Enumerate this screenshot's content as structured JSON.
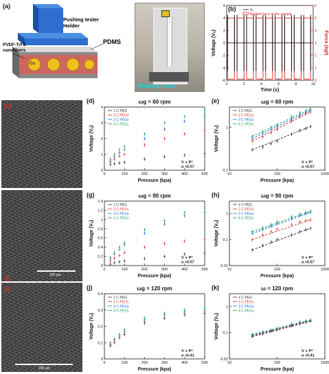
{
  "panels": {
    "a": {
      "label": "(a)",
      "holder_label": "Pushing tester\nHolder",
      "pdms_label": "PDMS",
      "fiber_label": "PVDF-TrFE\nnanofibers",
      "cu_label": "Cu",
      "photo_label": "Pushing tester"
    },
    "f": {
      "label": "(f)",
      "scale": "200 μm"
    },
    "i": {
      "label": "(i)",
      "scale": "200 μm"
    }
  },
  "chart_data": [
    {
      "id": "b",
      "panel_label": "(b)",
      "type": "line",
      "xlabel": "Time (s)",
      "ylabel": "Voltage (Vₒ)",
      "y2label": "Force (kgf)",
      "xlim": [
        0,
        10
      ],
      "ylim": [
        -6,
        6
      ],
      "y2lim": [
        0,
        6
      ],
      "xticks": [
        0,
        2,
        4,
        6,
        8,
        10
      ],
      "yticks": [
        -6,
        -4,
        -2,
        0,
        2,
        4,
        6
      ],
      "y2ticks": [
        0,
        1,
        2,
        3,
        4,
        5,
        6
      ],
      "series": [
        {
          "name": "Vₒ",
          "color": "#000000"
        },
        {
          "name": "Applied force at the sample",
          "color": "#e02020"
        }
      ],
      "force_high": 5,
      "force_low": 0.1,
      "press_intervals": [
        [
          0.1,
          0.9
        ],
        [
          1.2,
          2.0
        ],
        [
          2.3,
          3.1
        ],
        [
          3.4,
          4.2
        ],
        [
          4.5,
          5.3
        ],
        [
          5.6,
          6.4
        ],
        [
          6.7,
          7.5
        ],
        [
          7.8,
          8.6
        ],
        [
          8.9,
          9.7
        ]
      ],
      "spike_amplitude": 4.5
    },
    {
      "id": "d",
      "panel_label": "(d)",
      "type": "scatter",
      "title": "ωg = 60 rpm",
      "xlabel": "Pressure (kpa)",
      "ylabel": "Voltage (Vₒ)",
      "xlim": [
        0,
        500
      ],
      "ylim": [
        0,
        4
      ],
      "xticks": [
        0,
        100,
        200,
        300,
        400,
        500
      ],
      "yticks": [
        0,
        1,
        2,
        3,
        4
      ],
      "annotation": "V ∝ Pᵅ\nα ≈0.57",
      "legend": "top-left",
      "x": [
        30,
        50,
        75,
        100,
        200,
        300,
        400,
        500
      ],
      "series": [
        {
          "name": "1 C-PEG",
          "color": "#333333",
          "values": [
            0.35,
            0.4,
            0.45,
            0.5,
            0.7,
            0.85,
            0.95,
            1.05
          ]
        },
        {
          "name": "2 C-PEGs",
          "color": "#e03030",
          "values": [
            0.5,
            0.7,
            0.9,
            1.0,
            1.6,
            2.0,
            2.3,
            2.5
          ]
        },
        {
          "name": "3 C-PEGs",
          "color": "#2070e0",
          "values": [
            0.6,
            0.85,
            1.1,
            1.3,
            2.0,
            2.6,
            3.1,
            3.4
          ]
        },
        {
          "name": "4 C-PEGs",
          "color": "#20a060",
          "values": [
            0.7,
            1.0,
            1.3,
            1.5,
            2.3,
            3.0,
            3.4,
            3.8
          ]
        }
      ]
    },
    {
      "id": "e",
      "panel_label": "(e)",
      "type": "scatter",
      "title": "ωg = 60 rpm",
      "xlabel": "Pressure (kpa)",
      "ylabel": "Voltage (Vₒ)",
      "xscale": "log",
      "yscale": "log",
      "xlim": [
        10,
        1000
      ],
      "ylim": [
        0.1,
        3
      ],
      "xticks": [
        10,
        100,
        1000
      ],
      "yticks": [
        0.1,
        1
      ],
      "annotation": "V ∝ Pᵅ\nα ≈0.57",
      "legend": "top-left",
      "x": [
        30,
        50,
        75,
        100,
        200,
        300,
        400,
        500
      ],
      "series": [
        {
          "name": "1 C-PEG",
          "color": "#333333",
          "values": [
            0.3,
            0.35,
            0.42,
            0.48,
            0.7,
            0.85,
            0.95,
            1.05
          ]
        },
        {
          "name": "2 C-PEGs",
          "color": "#e03030",
          "values": [
            0.48,
            0.6,
            0.75,
            0.9,
            1.4,
            1.8,
            2.1,
            2.3
          ]
        },
        {
          "name": "3 C-PEGs",
          "color": "#2070e0",
          "values": [
            0.55,
            0.72,
            0.9,
            1.05,
            1.6,
            2.0,
            2.3,
            2.5
          ]
        },
        {
          "name": "4 C-PEGs",
          "color": "#20a060",
          "values": [
            0.62,
            0.8,
            1.0,
            1.15,
            1.8,
            2.2,
            2.5,
            2.7
          ]
        }
      ]
    },
    {
      "id": "g",
      "panel_label": "(g)",
      "type": "scatter",
      "title": "ωg = 90 rpm",
      "xlabel": "Pressure (kpa)",
      "ylabel": "Voltage (Vₒ)",
      "xlim": [
        0,
        500
      ],
      "ylim": [
        0,
        1.4
      ],
      "xticks": [
        0,
        100,
        200,
        300,
        400,
        500
      ],
      "yticks": [
        0,
        0.2,
        0.4,
        0.6,
        0.8,
        1.0,
        1.2,
        1.4
      ],
      "annotation": "V ∝ Pᵅ\nα ≈0.57",
      "legend": "top-left",
      "x": [
        30,
        50,
        75,
        100,
        200,
        300,
        400,
        500
      ],
      "series": [
        {
          "name": "1 C-PEG",
          "color": "#333333",
          "values": [
            0.03,
            0.06,
            0.08,
            0.1,
            0.15,
            0.2,
            0.25,
            0.27
          ]
        },
        {
          "name": "2 C-PEGs",
          "color": "#e03030",
          "values": [
            0.1,
            0.16,
            0.22,
            0.28,
            0.4,
            0.48,
            0.53,
            0.56
          ]
        },
        {
          "name": "3 C-PEGs",
          "color": "#2070e0",
          "values": [
            0.15,
            0.25,
            0.35,
            0.45,
            0.7,
            0.9,
            1.08,
            1.15
          ]
        },
        {
          "name": "4 C-PEGs",
          "color": "#20a060",
          "values": [
            0.18,
            0.28,
            0.4,
            0.5,
            0.78,
            0.97,
            1.15,
            1.25
          ]
        }
      ]
    },
    {
      "id": "h",
      "panel_label": "(h)",
      "type": "scatter",
      "title": "ωg = 90 rpm",
      "xlabel": "Pressure (kpa)",
      "ylabel": "Voltage (Vₒ)",
      "xscale": "log",
      "yscale": "log",
      "xlim": [
        10,
        1000
      ],
      "ylim": [
        0.01,
        3
      ],
      "xticks": [
        10,
        100,
        1000
      ],
      "yticks": [
        0.01,
        0.1,
        1
      ],
      "annotation": "V ∝ Pᵅ\nα ≈0.57",
      "legend": "top-left",
      "x": [
        30,
        50,
        75,
        100,
        200,
        300,
        400,
        500
      ],
      "series": [
        {
          "name": "1 C-PEG",
          "color": "#333333",
          "values": [
            0.04,
            0.06,
            0.08,
            0.1,
            0.15,
            0.2,
            0.24,
            0.27
          ]
        },
        {
          "name": "2 C-PEGs",
          "color": "#e03030",
          "values": [
            0.1,
            0.15,
            0.2,
            0.25,
            0.38,
            0.47,
            0.53,
            0.57
          ]
        },
        {
          "name": "3 C-PEGs",
          "color": "#2070e0",
          "values": [
            0.17,
            0.25,
            0.33,
            0.42,
            0.65,
            0.85,
            1.0,
            1.1
          ]
        },
        {
          "name": "4 C-PEGs",
          "color": "#20a060",
          "values": [
            0.2,
            0.28,
            0.38,
            0.48,
            0.75,
            0.95,
            1.1,
            1.22
          ]
        }
      ]
    },
    {
      "id": "j",
      "panel_label": "(j)",
      "type": "scatter",
      "title": "ωg = 120 rpm",
      "xlabel": "Pressure (kpa)",
      "ylabel": "Voltage (Vₒ)",
      "xlim": [
        0,
        500
      ],
      "ylim": [
        0,
        0.4
      ],
      "xticks": [
        0,
        100,
        200,
        300,
        400,
        500
      ],
      "yticks": [
        0,
        0.1,
        0.2,
        0.3,
        0.4
      ],
      "annotation": "V ∝ Pᵅ\nα ≈0.41",
      "legend": "top-left",
      "x": [
        30,
        50,
        75,
        100,
        200,
        300,
        400,
        500
      ],
      "series": [
        {
          "name": "1 C-PEG",
          "color": "#333333",
          "values": [
            0.08,
            0.1,
            0.13,
            0.15,
            0.22,
            0.25,
            0.27,
            0.28
          ]
        },
        {
          "name": "2 C-PEGs",
          "color": "#e03030",
          "values": [
            0.09,
            0.11,
            0.14,
            0.16,
            0.23,
            0.27,
            0.28,
            0.29
          ]
        },
        {
          "name": "3 C-PEGs",
          "color": "#2070e0",
          "values": [
            0.09,
            0.12,
            0.15,
            0.17,
            0.24,
            0.27,
            0.29,
            0.3
          ]
        },
        {
          "name": "4 C-PEGs",
          "color": "#20a060",
          "values": [
            0.1,
            0.12,
            0.15,
            0.18,
            0.25,
            0.28,
            0.3,
            0.31
          ]
        }
      ]
    },
    {
      "id": "k",
      "panel_label": "(k)",
      "type": "scatter",
      "title": "ω = 120 rpm",
      "xlabel": "Pressure (kpa)",
      "ylabel": "Voltage (Vₒ)",
      "xscale": "log",
      "yscale": "log",
      "xlim": [
        10,
        1000
      ],
      "ylim": [
        0.01,
        3
      ],
      "xticks": [
        10,
        100,
        1000
      ],
      "yticks": [
        0.01,
        0.1,
        1
      ],
      "annotation": "V ∝ Pᵅ\nα ≈0.41",
      "legend": "top-left",
      "x": [
        30,
        50,
        75,
        100,
        200,
        300,
        400,
        500
      ],
      "series": [
        {
          "name": "1 C-PEG",
          "color": "#333333",
          "values": [
            0.07,
            0.09,
            0.11,
            0.13,
            0.18,
            0.22,
            0.25,
            0.27
          ]
        },
        {
          "name": "2 C-PEGs",
          "color": "#e03030",
          "values": [
            0.075,
            0.095,
            0.115,
            0.135,
            0.19,
            0.23,
            0.26,
            0.28
          ]
        },
        {
          "name": "3 C-PEGs",
          "color": "#2070e0",
          "values": [
            0.08,
            0.1,
            0.12,
            0.14,
            0.2,
            0.24,
            0.27,
            0.29
          ]
        },
        {
          "name": "4 C-PEGs",
          "color": "#20a060",
          "values": [
            0.085,
            0.105,
            0.125,
            0.145,
            0.21,
            0.25,
            0.28,
            0.3
          ]
        }
      ]
    }
  ]
}
